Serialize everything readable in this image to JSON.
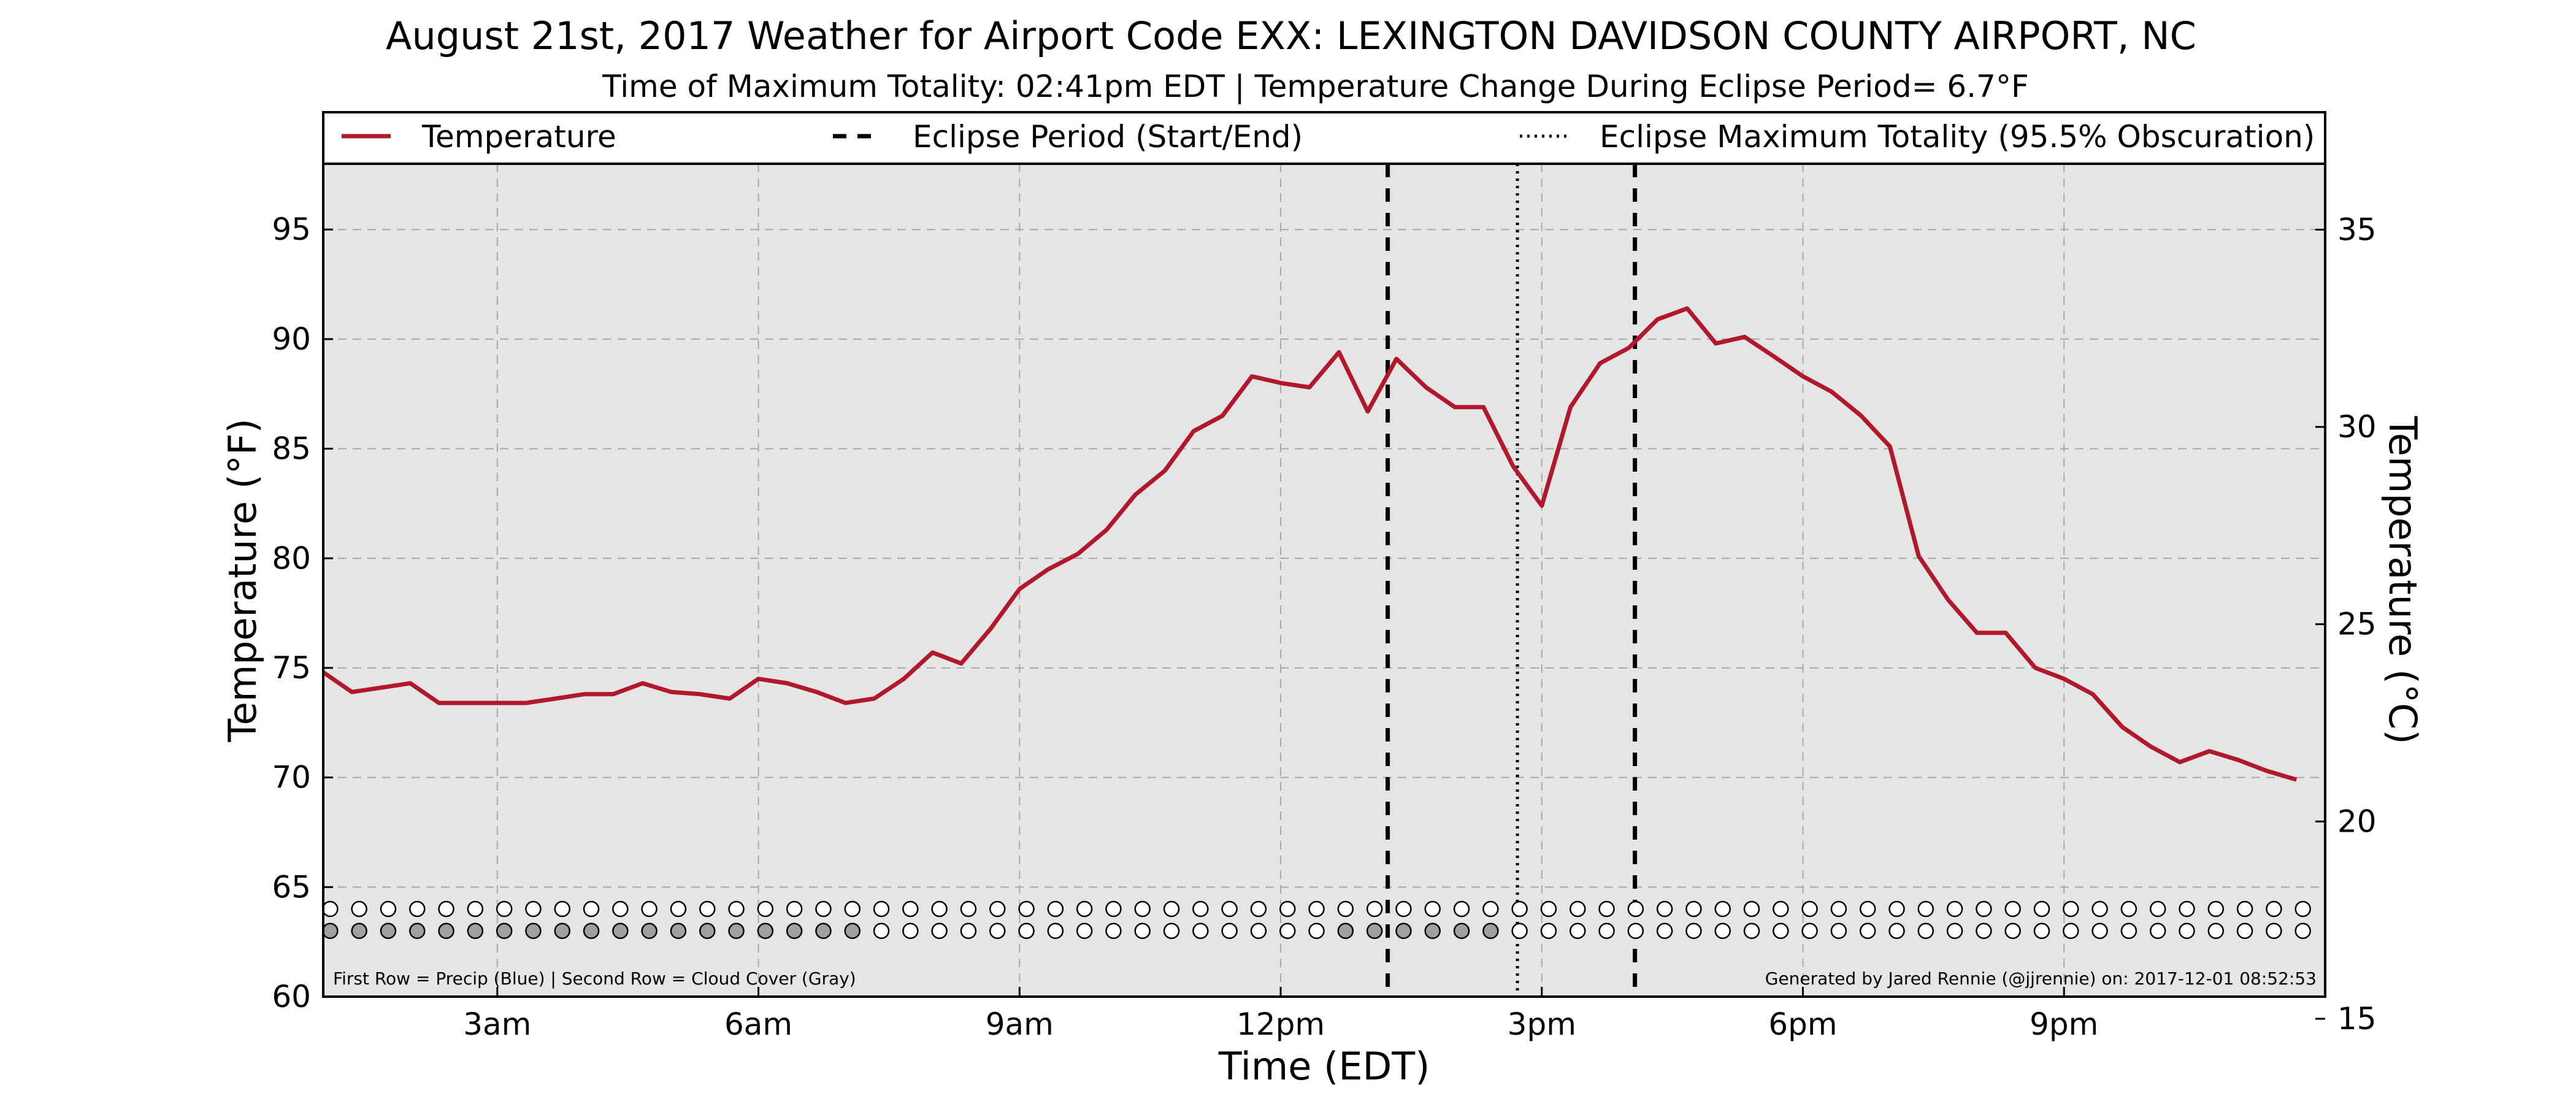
{
  "chart_data": {
    "type": "line",
    "title": "August 21st, 2017 Weather for Airport Code EXX: LEXINGTON DAVIDSON COUNTY AIRPORT, NC",
    "subtitle": "Time of Maximum Totality: 02:41pm EDT | Temperature Change During Eclipse Period= 6.7°F",
    "xlabel": "Time (EDT)",
    "ylabel": "Temperature (°F)",
    "ylabel_right": "Temperature (°C)",
    "x_units": "hours after midnight EDT",
    "xlim": [
      1.0,
      24.0
    ],
    "ylim": [
      60,
      98
    ],
    "ylim_right": [
      15.56,
      36.67
    ],
    "x_ticks": [
      {
        "label": "3am",
        "x": 3
      },
      {
        "label": "6am",
        "x": 6
      },
      {
        "label": "9am",
        "x": 9
      },
      {
        "label": "12pm",
        "x": 12
      },
      {
        "label": "3pm",
        "x": 15
      },
      {
        "label": "6pm",
        "x": 18
      },
      {
        "label": "9pm",
        "x": 21
      }
    ],
    "y_ticks": [
      60,
      65,
      70,
      75,
      80,
      85,
      90,
      95
    ],
    "y_ticks_right": [
      15,
      20,
      25,
      30,
      35
    ],
    "grid": true,
    "background": "#e5e5e5",
    "legend_position": "top, above plot area",
    "legend": [
      {
        "label": "Temperature",
        "style": "solid",
        "color": "#b2182b"
      },
      {
        "label": "Eclipse Period (Start/End)",
        "style": "dashed",
        "color": "#000000"
      },
      {
        "label": "Eclipse Maximum Totality (95.5% Obscuration)",
        "style": "dotted",
        "color": "#000000"
      }
    ],
    "vlines": [
      {
        "x": 13.23,
        "style": "dashed",
        "note": "eclipse start"
      },
      {
        "x": 14.72,
        "style": "dotted",
        "note": "maximum totality"
      },
      {
        "x": 16.07,
        "style": "dashed",
        "note": "eclipse end"
      }
    ],
    "series": [
      {
        "name": "Temperature",
        "color": "#b2182b",
        "points": [
          [
            1.0,
            74.8
          ],
          [
            1.33,
            73.9
          ],
          [
            1.67,
            74.1
          ],
          [
            2.0,
            74.3
          ],
          [
            2.33,
            73.4
          ],
          [
            2.67,
            73.4
          ],
          [
            3.0,
            73.4
          ],
          [
            3.33,
            73.4
          ],
          [
            3.67,
            73.6
          ],
          [
            4.0,
            73.8
          ],
          [
            4.33,
            73.8
          ],
          [
            4.67,
            74.3
          ],
          [
            5.0,
            73.9
          ],
          [
            5.33,
            73.8
          ],
          [
            5.67,
            73.6
          ],
          [
            6.0,
            74.5
          ],
          [
            6.33,
            74.3
          ],
          [
            6.67,
            73.9
          ],
          [
            7.0,
            73.4
          ],
          [
            7.33,
            73.6
          ],
          [
            7.67,
            74.5
          ],
          [
            8.0,
            75.7
          ],
          [
            8.33,
            75.2
          ],
          [
            8.67,
            76.8
          ],
          [
            9.0,
            78.6
          ],
          [
            9.33,
            79.5
          ],
          [
            9.67,
            80.2
          ],
          [
            10.0,
            81.3
          ],
          [
            10.33,
            82.9
          ],
          [
            10.67,
            84.0
          ],
          [
            11.0,
            85.8
          ],
          [
            11.33,
            86.5
          ],
          [
            11.67,
            88.3
          ],
          [
            12.0,
            88.0
          ],
          [
            12.33,
            87.8
          ],
          [
            12.67,
            89.4
          ],
          [
            13.0,
            86.7
          ],
          [
            13.33,
            89.1
          ],
          [
            13.67,
            87.8
          ],
          [
            14.0,
            86.9
          ],
          [
            14.33,
            86.9
          ],
          [
            14.67,
            84.2
          ],
          [
            15.0,
            82.4
          ],
          [
            15.33,
            86.9
          ],
          [
            15.67,
            88.9
          ],
          [
            16.0,
            89.6
          ],
          [
            16.33,
            90.9
          ],
          [
            16.67,
            91.4
          ],
          [
            17.0,
            89.8
          ],
          [
            17.33,
            90.1
          ],
          [
            17.67,
            89.2
          ],
          [
            18.0,
            88.3
          ],
          [
            18.33,
            87.6
          ],
          [
            18.67,
            86.5
          ],
          [
            19.0,
            85.1
          ],
          [
            19.33,
            80.1
          ],
          [
            19.67,
            78.1
          ],
          [
            20.0,
            76.6
          ],
          [
            20.33,
            76.6
          ],
          [
            20.67,
            75.0
          ],
          [
            21.0,
            74.5
          ],
          [
            21.33,
            73.8
          ],
          [
            21.67,
            72.3
          ],
          [
            22.0,
            71.4
          ],
          [
            22.33,
            70.7
          ],
          [
            22.67,
            71.2
          ],
          [
            23.0,
            70.8
          ],
          [
            23.33,
            70.3
          ],
          [
            23.67,
            69.9
          ]
        ]
      }
    ],
    "marker_rows": [
      {
        "name": "Precip",
        "y": 64,
        "x_start": 1.08,
        "x_step": 0.3333,
        "fill_color": "#0000ff",
        "values": [
          0,
          0,
          0,
          0,
          0,
          0,
          0,
          0,
          0,
          0,
          0,
          0,
          0,
          0,
          0,
          0,
          0,
          0,
          0,
          0,
          0,
          0,
          0,
          0,
          0,
          0,
          0,
          0,
          0,
          0,
          0,
          0,
          0,
          0,
          0,
          0,
          0,
          0,
          0,
          0,
          0,
          0,
          0,
          0,
          0,
          0,
          0,
          0,
          0,
          0,
          0,
          0,
          0,
          0,
          0,
          0,
          0,
          0,
          0,
          0,
          0,
          0,
          0,
          0,
          0,
          0,
          0,
          0,
          0,
          0
        ]
      },
      {
        "name": "Cloud Cover",
        "y": 63,
        "x_start": 1.08,
        "x_step": 0.3333,
        "fill_color": "#a0a0a0",
        "values": [
          1,
          1,
          1,
          1,
          1,
          1,
          1,
          1,
          1,
          1,
          1,
          1,
          1,
          1,
          1,
          1,
          1,
          1,
          1,
          0,
          0,
          0,
          0,
          0,
          0,
          0,
          0,
          0,
          0,
          0,
          0,
          0,
          0,
          0,
          0,
          1,
          1,
          1,
          1,
          1,
          1,
          0,
          0,
          0,
          0,
          0,
          0,
          0,
          0,
          0,
          0,
          0,
          0,
          0,
          0,
          0,
          0,
          0,
          0,
          0,
          0,
          0,
          0,
          0,
          0,
          0,
          0,
          0,
          0,
          0
        ]
      }
    ],
    "annotations": {
      "left_note": "First Row = Precip (Blue) | Second Row = Cloud Cover (Gray)",
      "right_note": "Generated by Jared Rennie (@jjrennie) on: 2017-12-01 08:52:53"
    }
  }
}
